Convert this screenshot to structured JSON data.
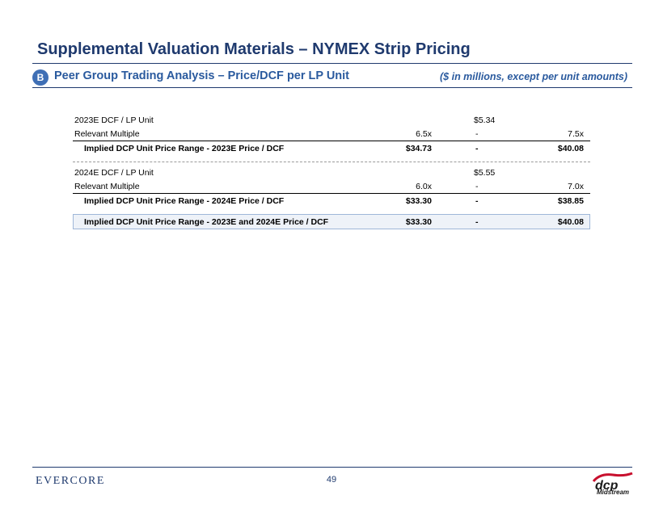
{
  "header": {
    "title": "Supplemental Valuation Materials – NYMEX Strip Pricing",
    "section_badge": "B",
    "section_title": "Peer Group Trading Analysis – Price/DCF per LP Unit",
    "units_note": "($ in millions, except per unit amounts)"
  },
  "valuation": {
    "block_2023": {
      "dcf_label": "2023E DCF / LP Unit",
      "dcf_value": "$5.34",
      "multiple_label": "Relevant Multiple",
      "multiple_low": "6.5x",
      "multiple_dash": "-",
      "multiple_high": "7.5x",
      "implied_label": "Implied DCP Unit Price Range - 2023E Price / DCF",
      "implied_low": "$34.73",
      "implied_dash": "-",
      "implied_high": "$40.08"
    },
    "block_2024": {
      "dcf_label": "2024E DCF / LP Unit",
      "dcf_value": "$5.55",
      "multiple_label": "Relevant Multiple",
      "multiple_low": "6.0x",
      "multiple_dash": "-",
      "multiple_high": "7.0x",
      "implied_label": "Implied DCP Unit Price Range - 2024E Price / DCF",
      "implied_low": "$33.30",
      "implied_dash": "-",
      "implied_high": "$38.85"
    },
    "summary": {
      "label": "Implied DCP Unit Price Range - 2023E and 2024E Price / DCF",
      "low": "$33.30",
      "dash": "-",
      "high": "$40.08"
    }
  },
  "footer": {
    "left_logo": "EVERCORE",
    "page_number": "49",
    "right_logo_text": "Midstream",
    "brand_color": "#1f3a6e",
    "accent_color": "#c8102e"
  }
}
